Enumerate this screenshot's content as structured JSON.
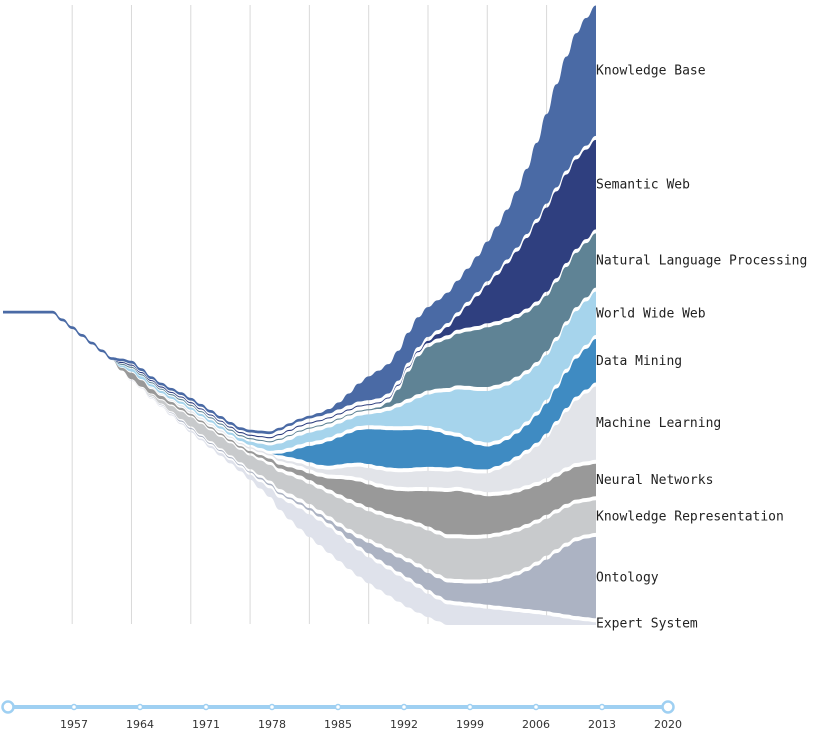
{
  "chart_data": {
    "type": "streamgraph",
    "title": "",
    "xlabel": "",
    "ylabel": "",
    "x_range": [
      1950,
      2010
    ],
    "gridline_years": [
      1957,
      1963,
      1969,
      1975,
      1981,
      1987,
      1993,
      1999,
      2005
    ],
    "timeline": {
      "ticks": [
        "1957",
        "1964",
        "1971",
        "1978",
        "1985",
        "1992",
        "1999",
        "2006",
        "2013",
        "2020"
      ],
      "range": [
        1950,
        2020
      ],
      "selected": [
        1950,
        2020
      ]
    },
    "series": [
      {
        "name": "Knowledge Base",
        "color": "#4a6aa5",
        "values": [
          0.5,
          0.5,
          0.5,
          0.5,
          0.5,
          0.5,
          0.5,
          0.5,
          0.5,
          0.5,
          0.5,
          0.5,
          0.5,
          0.5,
          0.5,
          0.5,
          0.5,
          0.5,
          0.5,
          0.5,
          0.5,
          0.5,
          0.5,
          0.5,
          0.5,
          0.5,
          0.5,
          0.5,
          0.5,
          0.5,
          0.5,
          0.5,
          0.6,
          0.8,
          1.3,
          2.2,
          3.3,
          4.4,
          5.1,
          5.4,
          5.5,
          5.5,
          5.5,
          5.5,
          5.5,
          5.6,
          5.8,
          6.1,
          6.6,
          7.3,
          8.2,
          9.2,
          10.4,
          12.0,
          14.0,
          16.5,
          19.0,
          21.0,
          22.5,
          23.5,
          24.0
        ]
      },
      {
        "name": "Semantic Web",
        "color": "#2f3f7f",
        "values": [
          0,
          0,
          0,
          0,
          0,
          0,
          0,
          0,
          0,
          0,
          0,
          0,
          0.2,
          0.2,
          0.2,
          0.2,
          0.2,
          0.2,
          0.2,
          0.2,
          0.2,
          0.2,
          0.2,
          0.2,
          0.2,
          0.2,
          0.2,
          0.2,
          0.2,
          0.2,
          0.2,
          0.2,
          0.2,
          0.2,
          0.2,
          0.2,
          0.2,
          0.2,
          0.2,
          0.2,
          0.2,
          0.2,
          0.2,
          0.4,
          0.8,
          1.5,
          2.5,
          4.0,
          5.5,
          7.0,
          8.5,
          10.0,
          11.5,
          13.0,
          14.5,
          15.5,
          16.0,
          16.3,
          16.5,
          16.5,
          16.5
        ]
      },
      {
        "name": "Natural Language Processing",
        "color": "#5f8395",
        "values": [
          0,
          0,
          0,
          0,
          0,
          0,
          0,
          0,
          0,
          0,
          0,
          0,
          0.2,
          0.2,
          0.2,
          0.2,
          0.2,
          0.2,
          0.2,
          0.2,
          0.2,
          0.2,
          0.2,
          0.2,
          0.2,
          0.2,
          0.2,
          0.2,
          0.2,
          0.2,
          0.2,
          0.2,
          0.2,
          0.2,
          0.2,
          0.2,
          0.2,
          0.2,
          0.3,
          0.8,
          2.5,
          5.0,
          7.0,
          8.0,
          8.5,
          9.0,
          9.5,
          10.0,
          10.5,
          11.0,
          11.0,
          11.0,
          10.8,
          10.6,
          10.4,
          10.2,
          10.1,
          10.0,
          10.0,
          10.0,
          10.0
        ]
      },
      {
        "name": "World Wide Web",
        "color": "#a6d4ec",
        "values": [
          0,
          0,
          0,
          0,
          0,
          0,
          0,
          0,
          0,
          0,
          0,
          0,
          0.3,
          0.5,
          0.5,
          0.4,
          0.4,
          0.4,
          0.4,
          0.4,
          0.4,
          0.4,
          0.4,
          0.4,
          0.5,
          0.6,
          0.8,
          1.0,
          1.2,
          1.4,
          1.6,
          1.7,
          1.8,
          1.8,
          1.8,
          1.8,
          1.9,
          2.0,
          2.3,
          2.8,
          3.5,
          4.3,
          5.0,
          5.8,
          6.5,
          7.2,
          8.0,
          8.7,
          9.2,
          9.5,
          9.5,
          9.3,
          9.0,
          8.7,
          8.4,
          8.2,
          8.0,
          8.0,
          8.0,
          8.0,
          8.0
        ]
      },
      {
        "name": "Data Mining",
        "color": "#3f8bc2",
        "values": [
          0,
          0,
          0,
          0,
          0,
          0,
          0,
          0,
          0,
          0,
          0,
          0,
          0,
          0,
          0,
          0,
          0,
          0,
          0,
          0,
          0,
          0,
          0,
          0,
          0,
          0,
          0,
          0,
          0.3,
          1.0,
          2.0,
          3.0,
          3.8,
          4.5,
          5.0,
          5.5,
          6.0,
          6.4,
          6.7,
          6.9,
          7.0,
          7.0,
          7.0,
          6.8,
          6.5,
          6.0,
          5.5,
          5.0,
          4.5,
          4.2,
          4.0,
          4.0,
          4.2,
          4.5,
          5.0,
          5.5,
          6.0,
          6.5,
          7.0,
          7.5,
          8.0
        ]
      },
      {
        "name": "Machine Learning",
        "color": "#e2e4e9",
        "values": [
          0,
          0,
          0,
          0,
          0,
          0,
          0,
          0,
          0,
          0,
          0,
          0,
          0,
          0,
          0,
          0.1,
          0.1,
          0.1,
          0.2,
          0.2,
          0.2,
          0.2,
          0.2,
          0.2,
          0.2,
          0.3,
          0.3,
          0.3,
          0.4,
          0.4,
          0.5,
          0.6,
          0.7,
          0.9,
          1.2,
          1.6,
          2.0,
          2.3,
          2.5,
          2.6,
          2.7,
          2.8,
          2.9,
          3.0,
          3.0,
          3.0,
          3.0,
          3.0,
          3.2,
          3.5,
          4.0,
          4.6,
          5.2,
          5.8,
          6.5,
          7.5,
          8.8,
          10.2,
          11.5,
          12.5,
          13.5
        ]
      },
      {
        "name": "Neural Networks",
        "color": "#999999",
        "values": [
          0,
          0,
          0,
          0,
          0,
          0,
          0,
          0,
          0,
          0,
          0,
          0,
          0.5,
          1.2,
          1.2,
          0.8,
          0.6,
          0.5,
          0.4,
          0.3,
          0.3,
          0.3,
          0.3,
          0.3,
          0.3,
          0.4,
          0.5,
          0.6,
          0.7,
          0.8,
          1.0,
          1.2,
          1.5,
          2.0,
          2.8,
          3.5,
          4.0,
          4.2,
          4.3,
          4.5,
          4.8,
          5.2,
          5.8,
          6.5,
          7.2,
          7.8,
          8.0,
          7.8,
          7.4,
          7.0,
          6.8,
          6.6,
          6.5,
          6.4,
          6.2,
          6.0,
          6.0,
          6.0,
          6.0,
          6.0,
          6.0
        ]
      },
      {
        "name": "Knowledge Representation",
        "color": "#c8cacc",
        "values": [
          0,
          0,
          0,
          0,
          0,
          0,
          0,
          0,
          0,
          0,
          0,
          0,
          0,
          0,
          0,
          0.2,
          0.6,
          1.0,
          1.4,
          1.7,
          1.9,
          2.0,
          2.1,
          2.2,
          2.3,
          2.5,
          2.7,
          2.9,
          3.1,
          3.3,
          3.5,
          3.7,
          3.9,
          4.2,
          4.5,
          4.8,
          5.0,
          5.1,
          5.3,
          5.6,
          6.0,
          6.4,
          6.8,
          7.1,
          7.3,
          7.4,
          7.5,
          7.5,
          7.5,
          7.5,
          7.5,
          7.4,
          7.3,
          7.2,
          7.0,
          6.8,
          6.6,
          6.4,
          6.2,
          6.0,
          6.0
        ]
      },
      {
        "name": "Ontology",
        "color": "#acb3c3",
        "values": [
          0,
          0,
          0,
          0,
          0,
          0,
          0,
          0,
          0,
          0,
          0,
          0,
          0,
          0,
          0,
          0.1,
          0.1,
          0.1,
          0.2,
          0.2,
          0.2,
          0.2,
          0.2,
          0.2,
          0.2,
          0.2,
          0.3,
          0.3,
          0.3,
          0.3,
          0.4,
          0.4,
          0.5,
          0.6,
          0.8,
          1.1,
          1.5,
          1.9,
          2.2,
          2.4,
          2.6,
          2.8,
          3.0,
          3.1,
          3.2,
          3.3,
          3.4,
          3.5,
          3.7,
          4.0,
          4.5,
          5.2,
          6.0,
          7.0,
          8.2,
          9.5,
          11.0,
          12.5,
          13.8,
          14.5,
          15.0
        ]
      },
      {
        "name": "Expert System",
        "color": "#dfe2eb",
        "values": [
          0,
          0,
          0,
          0,
          0,
          0,
          0,
          0,
          0,
          0,
          0,
          0,
          0,
          0.1,
          0.1,
          0.1,
          0.1,
          0.2,
          0.2,
          0.3,
          0.3,
          0.4,
          0.5,
          0.6,
          0.7,
          0.9,
          1.2,
          1.6,
          2.2,
          3.0,
          3.7,
          4.2,
          4.5,
          4.7,
          4.8,
          4.8,
          4.8,
          4.8,
          4.8,
          4.8,
          4.8,
          4.8,
          4.6,
          4.3,
          4.0,
          3.8,
          3.6,
          3.4,
          3.2,
          3.0,
          2.8,
          2.6,
          2.4,
          2.2,
          2.0,
          1.8,
          1.5,
          1.2,
          0.9,
          0.7,
          0.5
        ]
      }
    ]
  }
}
